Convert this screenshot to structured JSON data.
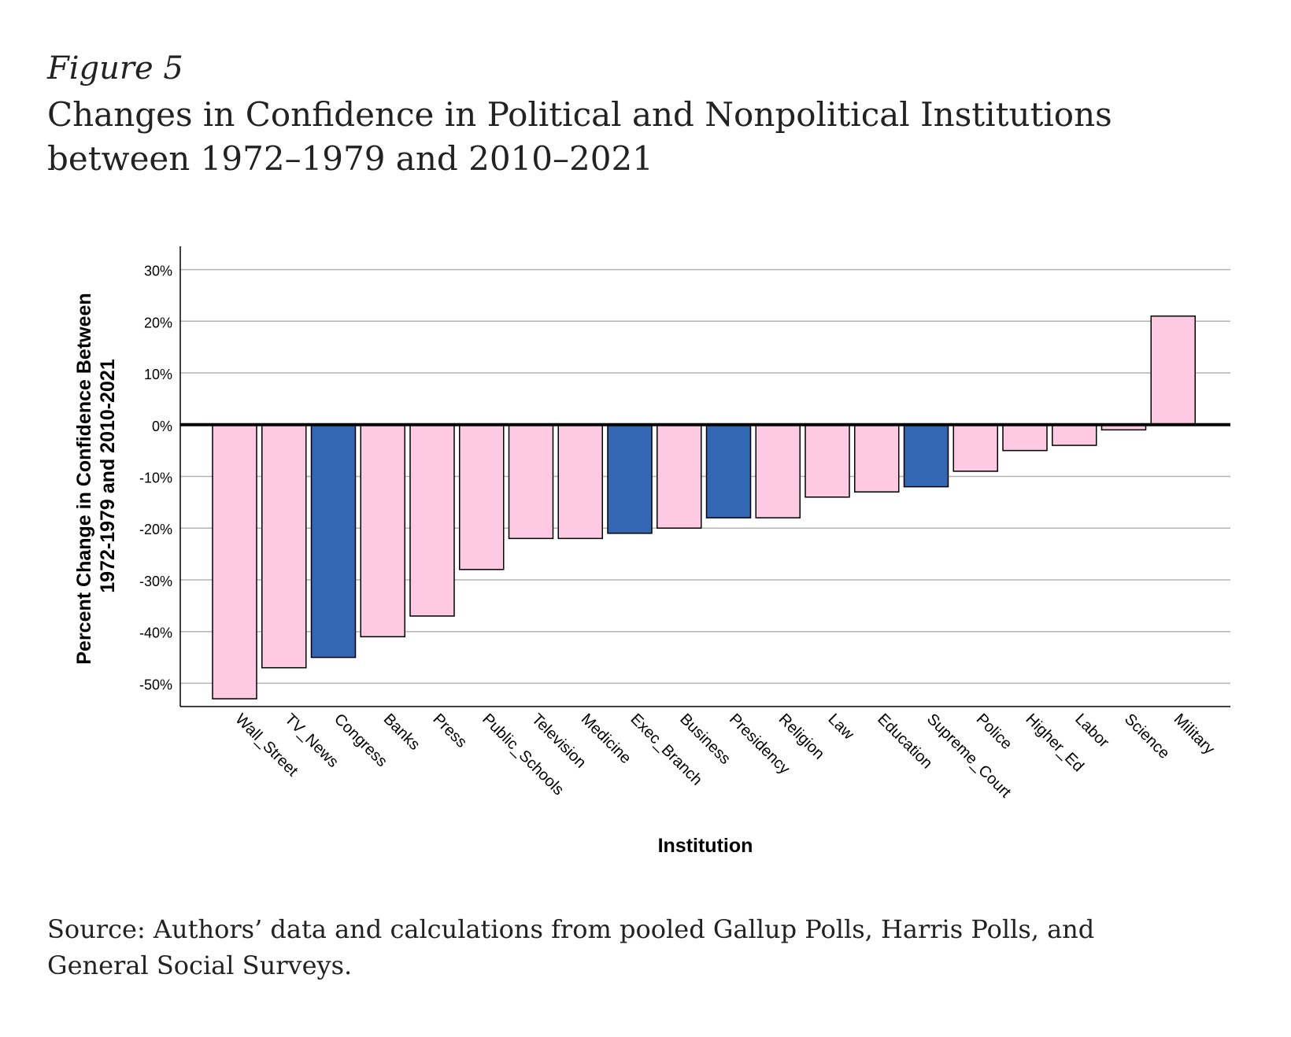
{
  "figure": {
    "label": "Figure 5",
    "title_line1": "Changes in Confidence in Political and Nonpolitical Institutions",
    "title_line2": "between 1972–1979 and 2010–2021",
    "source_line1": "Source: Authors’ data and calculations from pooled Gallup Polls, Harris Polls, and",
    "source_line2": "General Social Surveys."
  },
  "colors": {
    "political": "#3366b3",
    "nonpolitical": "#fdc9e3",
    "bar_stroke": "#000000",
    "grid": "#b3b3b3",
    "zero_line": "#000000"
  },
  "chart_data": {
    "type": "bar",
    "title": "Changes in Confidence in Political and Nonpolitical Institutions between 1972–1979 and 2010–2021",
    "xlabel": "Institution",
    "ylabel_line1": "Percent Change in Confidence Between",
    "ylabel_line2": "1972-1979 and 2010-2021",
    "ylim": [
      -54.5,
      34.5
    ],
    "yticks": [
      30,
      20,
      10,
      0,
      -10,
      -20,
      -30,
      -40,
      -50
    ],
    "ytick_labels": [
      "30%",
      "20%",
      "10%",
      "0%",
      "-10%",
      "-20%",
      "-30%",
      "-40%",
      "-50%"
    ],
    "grid": true,
    "categories": [
      "Wall_Street",
      "TV_News",
      "Congress",
      "Banks",
      "Press",
      "Public_Schools",
      "Television",
      "Medicine",
      "Exec_Branch",
      "Business",
      "Presidency",
      "Religion",
      "Law",
      "Education",
      "Supreme_Court",
      "Police",
      "Higher_Ed",
      "Labor",
      "Science",
      "Military"
    ],
    "values": [
      -53,
      -47,
      -45,
      -41,
      -37,
      -28,
      -22,
      -22,
      -21,
      -20,
      -18,
      -18,
      -14,
      -13,
      -12,
      -9,
      -5,
      -4,
      -1,
      21
    ],
    "political": [
      false,
      false,
      true,
      false,
      false,
      false,
      false,
      false,
      true,
      false,
      true,
      false,
      false,
      false,
      true,
      false,
      false,
      false,
      false,
      false
    ]
  }
}
